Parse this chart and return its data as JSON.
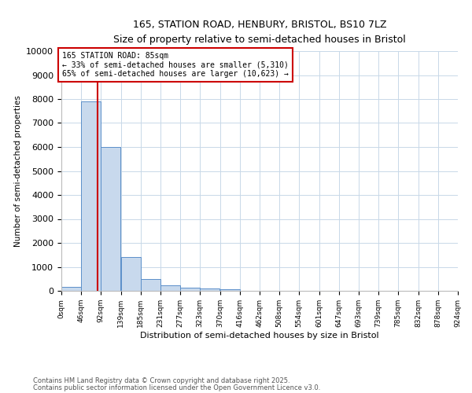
{
  "title_line1": "165, STATION ROAD, HENBURY, BRISTOL, BS10 7LZ",
  "title_line2": "Size of property relative to semi-detached houses in Bristol",
  "xlabel": "Distribution of semi-detached houses by size in Bristol",
  "ylabel": "Number of semi-detached properties",
  "bin_labels": [
    "0sqm",
    "46sqm",
    "92sqm",
    "139sqm",
    "185sqm",
    "231sqm",
    "277sqm",
    "323sqm",
    "370sqm",
    "416sqm",
    "462sqm",
    "508sqm",
    "554sqm",
    "601sqm",
    "647sqm",
    "693sqm",
    "739sqm",
    "785sqm",
    "832sqm",
    "878sqm",
    "924sqm"
  ],
  "bin_edges": [
    0,
    46,
    92,
    139,
    185,
    231,
    277,
    323,
    370,
    416,
    462,
    508,
    554,
    601,
    647,
    693,
    739,
    785,
    832,
    878,
    924
  ],
  "bar_heights": [
    150,
    7900,
    6000,
    1400,
    500,
    230,
    130,
    100,
    60,
    10,
    5,
    3,
    2,
    1,
    1,
    1,
    0,
    0,
    0,
    0
  ],
  "bar_color": "#c8d9ed",
  "bar_edge_color": "#5b8fc9",
  "property_size": 85,
  "property_line_color": "#cc0000",
  "annotation_text_line1": "165 STATION ROAD: 85sqm",
  "annotation_text_line2": "← 33% of semi-detached houses are smaller (5,310)",
  "annotation_text_line3": "65% of semi-detached houses are larger (10,623) →",
  "annotation_box_color": "#ffffff",
  "annotation_box_edge": "#cc0000",
  "ylim": [
    0,
    10000
  ],
  "yticks": [
    0,
    1000,
    2000,
    3000,
    4000,
    5000,
    6000,
    7000,
    8000,
    9000,
    10000
  ],
  "xlim": [
    0,
    924
  ],
  "footer_line1": "Contains HM Land Registry data © Crown copyright and database right 2025.",
  "footer_line2": "Contains public sector information licensed under the Open Government Licence v3.0.",
  "bg_color": "#ffffff",
  "grid_color": "#c8d8e8"
}
